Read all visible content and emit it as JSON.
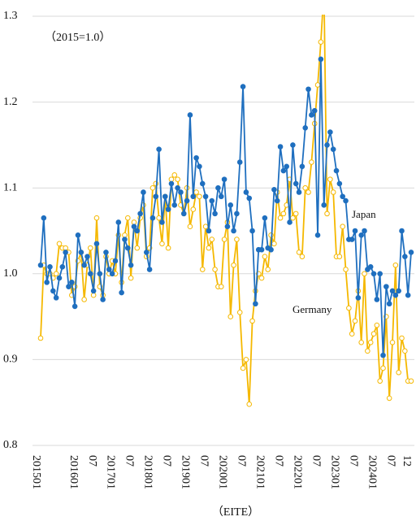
{
  "chart_data": {
    "type": "line",
    "subtitle": "（2015=1.0）",
    "x_label": "（EITE）",
    "categories": [
      "201501",
      null,
      null,
      null,
      null,
      null,
      null,
      null,
      null,
      null,
      null,
      null,
      "201601",
      null,
      null,
      null,
      null,
      null,
      "07",
      null,
      null,
      null,
      null,
      null,
      "201701",
      null,
      null,
      null,
      null,
      null,
      "07",
      null,
      null,
      null,
      null,
      null,
      "201801",
      null,
      null,
      null,
      null,
      null,
      "07",
      null,
      null,
      null,
      null,
      null,
      "201901",
      null,
      null,
      null,
      null,
      null,
      "07",
      null,
      null,
      null,
      null,
      null,
      "202001",
      null,
      null,
      null,
      null,
      null,
      "07",
      null,
      null,
      null,
      null,
      null,
      "202101",
      null,
      null,
      null,
      null,
      null,
      "07",
      null,
      null,
      null,
      null,
      null,
      "202201",
      null,
      null,
      null,
      null,
      null,
      "07",
      null,
      null,
      null,
      null,
      null,
      "202301",
      null,
      null,
      null,
      null,
      null,
      "07",
      null,
      null,
      null,
      null,
      null,
      "202401",
      null,
      null,
      null,
      null,
      null,
      "07",
      null,
      null,
      null,
      null,
      "12"
    ],
    "series": [
      {
        "name": "Japan",
        "color": "#1f6fbf",
        "marker": "filled",
        "values": [
          1.01,
          1.065,
          0.99,
          1.008,
          0.98,
          0.972,
          0.995,
          1.008,
          1.025,
          0.985,
          0.99,
          0.962,
          1.045,
          1.025,
          1.01,
          1.02,
          1.0,
          0.98,
          1.035,
          1.0,
          0.97,
          1.025,
          1.005,
          1.0,
          1.015,
          1.06,
          0.978,
          1.04,
          1.03,
          1.01,
          1.055,
          1.05,
          1.07,
          1.095,
          1.025,
          1.005,
          1.065,
          1.09,
          1.145,
          1.06,
          1.09,
          1.075,
          1.105,
          1.08,
          1.1,
          1.095,
          1.07,
          1.085,
          1.185,
          1.09,
          1.135,
          1.125,
          1.105,
          1.09,
          1.05,
          1.085,
          1.07,
          1.1,
          1.09,
          1.11,
          1.055,
          1.08,
          1.05,
          1.07,
          1.13,
          1.218,
          1.095,
          1.088,
          1.05,
          0.965,
          1.028,
          1.028,
          1.065,
          1.03,
          1.028,
          1.098,
          1.085,
          1.148,
          1.12,
          1.125,
          1.06,
          1.15,
          1.105,
          1.095,
          1.125,
          1.17,
          1.215,
          1.185,
          1.19,
          1.045,
          1.25,
          1.08,
          1.15,
          1.165,
          1.145,
          1.12,
          1.105,
          1.09,
          1.085,
          1.04,
          1.04,
          1.05,
          0.972,
          1.045,
          1.05,
          1.005,
          1.008,
          1.0,
          0.97,
          1.0,
          0.905,
          0.985,
          0.965,
          0.98,
          0.975,
          0.98,
          1.05,
          1.02,
          0.975,
          1.025
        ]
      },
      {
        "name": "Germany",
        "color": "#f5b800",
        "marker": "open",
        "values": [
          0.925,
          1.01,
          1.0,
          1.0,
          0.995,
          1.0,
          1.035,
          1.03,
          1.03,
          1.025,
          0.975,
          0.985,
          1.015,
          1.025,
          0.97,
          1.01,
          1.03,
          0.975,
          1.065,
          0.985,
          0.975,
          1.02,
          1.0,
          1.015,
          1.0,
          1.045,
          0.99,
          1.045,
          1.065,
          0.995,
          1.06,
          1.03,
          1.065,
          1.08,
          1.02,
          1.03,
          1.1,
          1.105,
          1.065,
          1.035,
          1.09,
          1.03,
          1.11,
          1.115,
          1.11,
          1.08,
          1.07,
          1.1,
          1.055,
          1.075,
          1.095,
          1.09,
          1.005,
          1.055,
          1.03,
          1.04,
          1.005,
          0.985,
          0.985,
          1.04,
          1.06,
          0.95,
          1.01,
          1.04,
          0.955,
          0.89,
          0.9,
          0.848,
          0.945,
          0.98,
          1.0,
          0.995,
          1.02,
          1.005,
          1.045,
          1.035,
          1.095,
          1.065,
          1.07,
          1.08,
          1.11,
          1.065,
          1.07,
          1.025,
          1.02,
          1.1,
          1.095,
          1.13,
          1.175,
          1.22,
          1.27,
          1.33,
          1.07,
          1.11,
          1.095,
          1.02,
          1.02,
          1.055,
          1.005,
          0.96,
          0.93,
          0.945,
          0.98,
          0.92,
          1.0,
          0.91,
          0.92,
          0.93,
          0.94,
          0.875,
          0.89,
          0.95,
          0.855,
          0.92,
          1.01,
          0.885,
          0.925,
          0.91,
          0.875,
          0.875
        ]
      }
    ],
    "ylim": [
      0.8,
      1.3
    ],
    "yticks": [
      0.8,
      0.9,
      {
        "value": 1,
        "label": "1.0"
      },
      1.1,
      1.2,
      1.3
    ],
    "grid": true
  }
}
